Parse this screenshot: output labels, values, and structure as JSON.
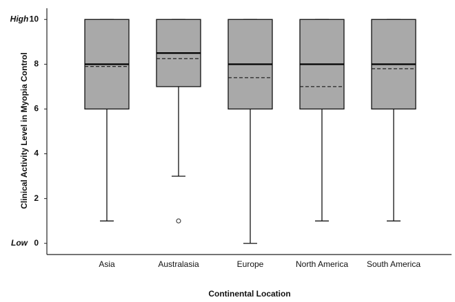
{
  "chart_data": {
    "type": "box",
    "x_label": "Continental Location",
    "y_label": "Clinical Activity Level in Myopia Control",
    "categories": [
      "Asia",
      "Australasia",
      "Europe",
      "North America",
      "South America"
    ],
    "ylim": [
      -0.5,
      10.5
    ],
    "yticks": [
      0,
      2,
      4,
      6,
      8,
      10
    ],
    "level_labels": [
      {
        "value": 10,
        "label": "High"
      },
      {
        "value": 0,
        "label": "Low"
      }
    ],
    "color": "#a9a9a9",
    "boxes": [
      {
        "min": 1,
        "q1": 6,
        "median": 8,
        "mean": 7.9,
        "q3": 10,
        "max": 10,
        "outliers": []
      },
      {
        "min": 3,
        "q1": 7,
        "median": 8.5,
        "mean": 8.25,
        "q3": 10,
        "max": 10,
        "outliers": [
          1
        ]
      },
      {
        "min": 0,
        "q1": 6,
        "median": 8,
        "mean": 7.4,
        "q3": 10,
        "max": 10,
        "outliers": []
      },
      {
        "min": 1,
        "q1": 6,
        "median": 8,
        "mean": 7.0,
        "q3": 10,
        "max": 10,
        "outliers": []
      },
      {
        "min": 1,
        "q1": 6,
        "median": 8,
        "mean": 7.8,
        "q3": 10,
        "max": 10,
        "outliers": []
      }
    ]
  }
}
